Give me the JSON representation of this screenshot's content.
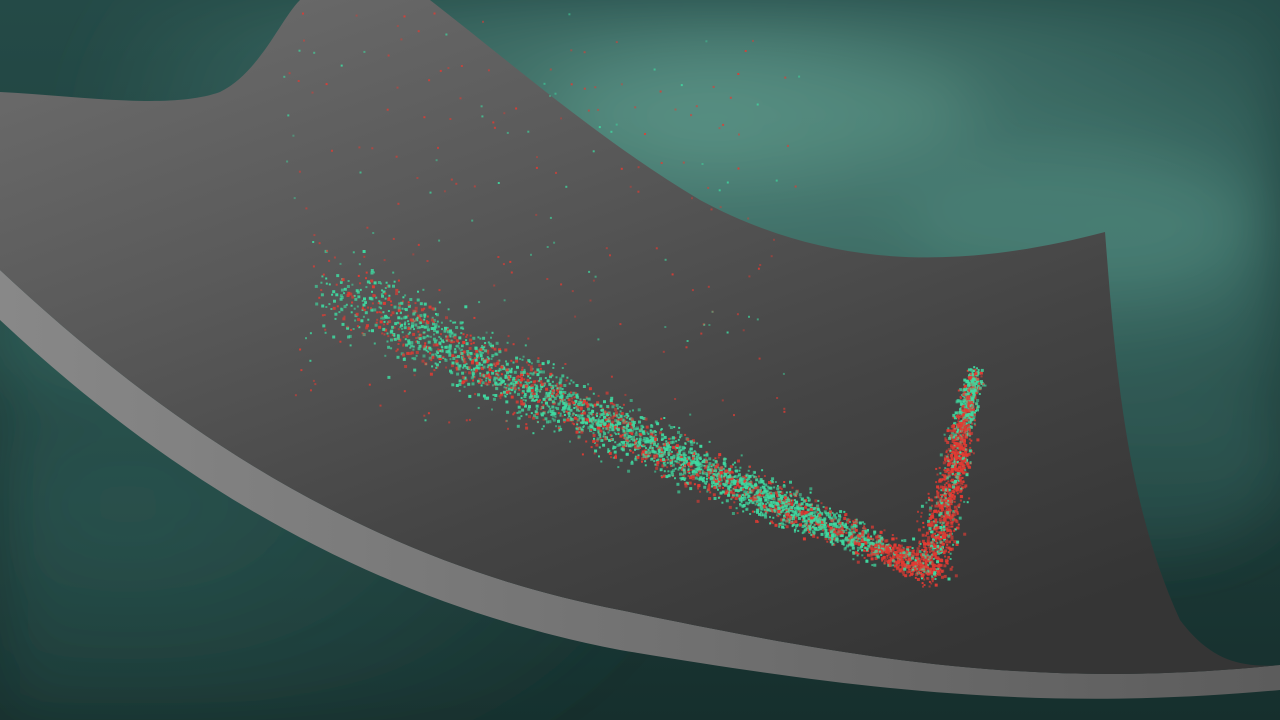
{
  "scene": {
    "description_free": true,
    "colors": {
      "background_deep": "#173533",
      "background_mid": "#2c5a55",
      "background_glow": "#5f9a8d",
      "sheet_light": "#707070",
      "sheet_dark": "#3a3a3a",
      "sheet_edge": "#8a8a8a",
      "cluster_green": "#3fd9a0",
      "cluster_red": "#e23b33"
    },
    "particle_clusters": [
      {
        "name": "green",
        "color_key": "cluster_green"
      },
      {
        "name": "red",
        "color_key": "cluster_red"
      }
    ]
  }
}
